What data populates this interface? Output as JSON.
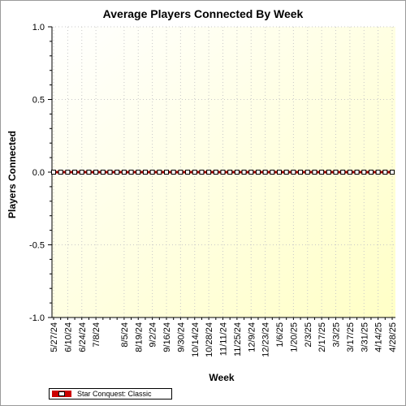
{
  "chart_data": {
    "type": "line",
    "title": "Average Players Connected By Week",
    "xlabel": "Week",
    "ylabel": "Players Connected",
    "ylim": [
      -1.0,
      1.0
    ],
    "y_ticks": [
      "1.0",
      "0.5",
      "0.0",
      "-0.5",
      "-1.0"
    ],
    "x_tick_labels": [
      "5/27/24",
      "6/10/24",
      "6/24/24",
      "7/8/24",
      "8/5/24",
      "8/19/24",
      "9/2/24",
      "9/16/24",
      "9/30/24",
      "10/14/24",
      "10/28/24",
      "11/11/24",
      "11/25/24",
      "12/9/24",
      "12/23/24",
      "1/6/25",
      "1/20/25",
      "2/3/25",
      "2/17/25",
      "3/3/25",
      "3/17/25",
      "3/31/25",
      "4/14/25",
      "4/28/25"
    ],
    "x": [
      "5/27/24",
      "6/3/24",
      "6/10/24",
      "6/17/24",
      "6/24/24",
      "7/1/24",
      "7/8/24",
      "7/15/24",
      "7/22/24",
      "7/29/24",
      "8/5/24",
      "8/12/24",
      "8/19/24",
      "8/26/24",
      "9/2/24",
      "9/9/24",
      "9/16/24",
      "9/23/24",
      "9/30/24",
      "10/7/24",
      "10/14/24",
      "10/21/24",
      "10/28/24",
      "11/4/24",
      "11/11/24",
      "11/18/24",
      "11/25/24",
      "12/2/24",
      "12/9/24",
      "12/16/24",
      "12/23/24",
      "12/30/24",
      "1/6/25",
      "1/13/25",
      "1/20/25",
      "1/27/25",
      "2/3/25",
      "2/10/25",
      "2/17/25",
      "2/24/25",
      "3/3/25",
      "3/10/25",
      "3/17/25",
      "3/24/25",
      "3/31/25",
      "4/7/25",
      "4/14/25",
      "4/21/25",
      "4/28/25"
    ],
    "series": [
      {
        "name": "Star Conquest: Classic",
        "color": "#cc0000",
        "values": [
          0,
          0,
          0,
          0,
          0,
          0,
          0,
          0,
          0,
          0,
          0,
          0,
          0,
          0,
          0,
          0,
          0,
          0,
          0,
          0,
          0,
          0,
          0,
          0,
          0,
          0,
          0,
          0,
          0,
          0,
          0,
          0,
          0,
          0,
          0,
          0,
          0,
          0,
          0,
          0,
          0,
          0,
          0,
          0,
          0,
          0,
          0,
          0,
          0
        ]
      }
    ],
    "grid": true,
    "legend_position": "bottom-left"
  }
}
